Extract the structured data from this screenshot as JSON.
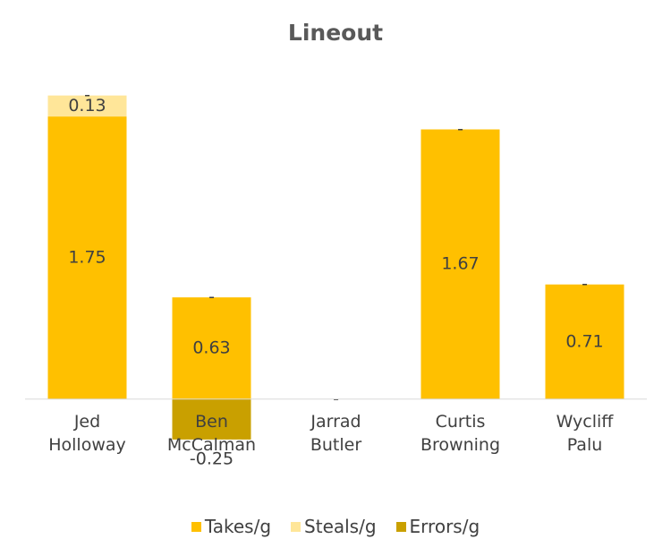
{
  "chart_data": {
    "type": "stacked-bar",
    "title": "Lineout",
    "categories": [
      "Jed Holloway",
      "Ben McCalman",
      "Jarrad Butler",
      "Curtis Browning",
      "Wycliff Palu"
    ],
    "series": [
      {
        "name": "Takes/g",
        "color": "#FFC000",
        "values": [
          1.75,
          0.63,
          0,
          1.67,
          0.71
        ],
        "value_labels": [
          "1.75",
          "0.63",
          "-",
          "1.67",
          "0.71"
        ]
      },
      {
        "name": "Steals/g",
        "color": "#FFE699",
        "values": [
          0.13,
          0,
          null,
          0,
          0
        ],
        "value_labels": [
          "0.13",
          "-",
          null,
          "-",
          "-"
        ]
      },
      {
        "name": "Errors/g",
        "color": "#C9A000",
        "values": [
          0,
          -0.25,
          null,
          null,
          null
        ],
        "value_labels": [
          "-",
          "-0.25",
          null,
          null,
          null
        ]
      }
    ],
    "ylim": [
      -0.5,
      2.0
    ]
  }
}
